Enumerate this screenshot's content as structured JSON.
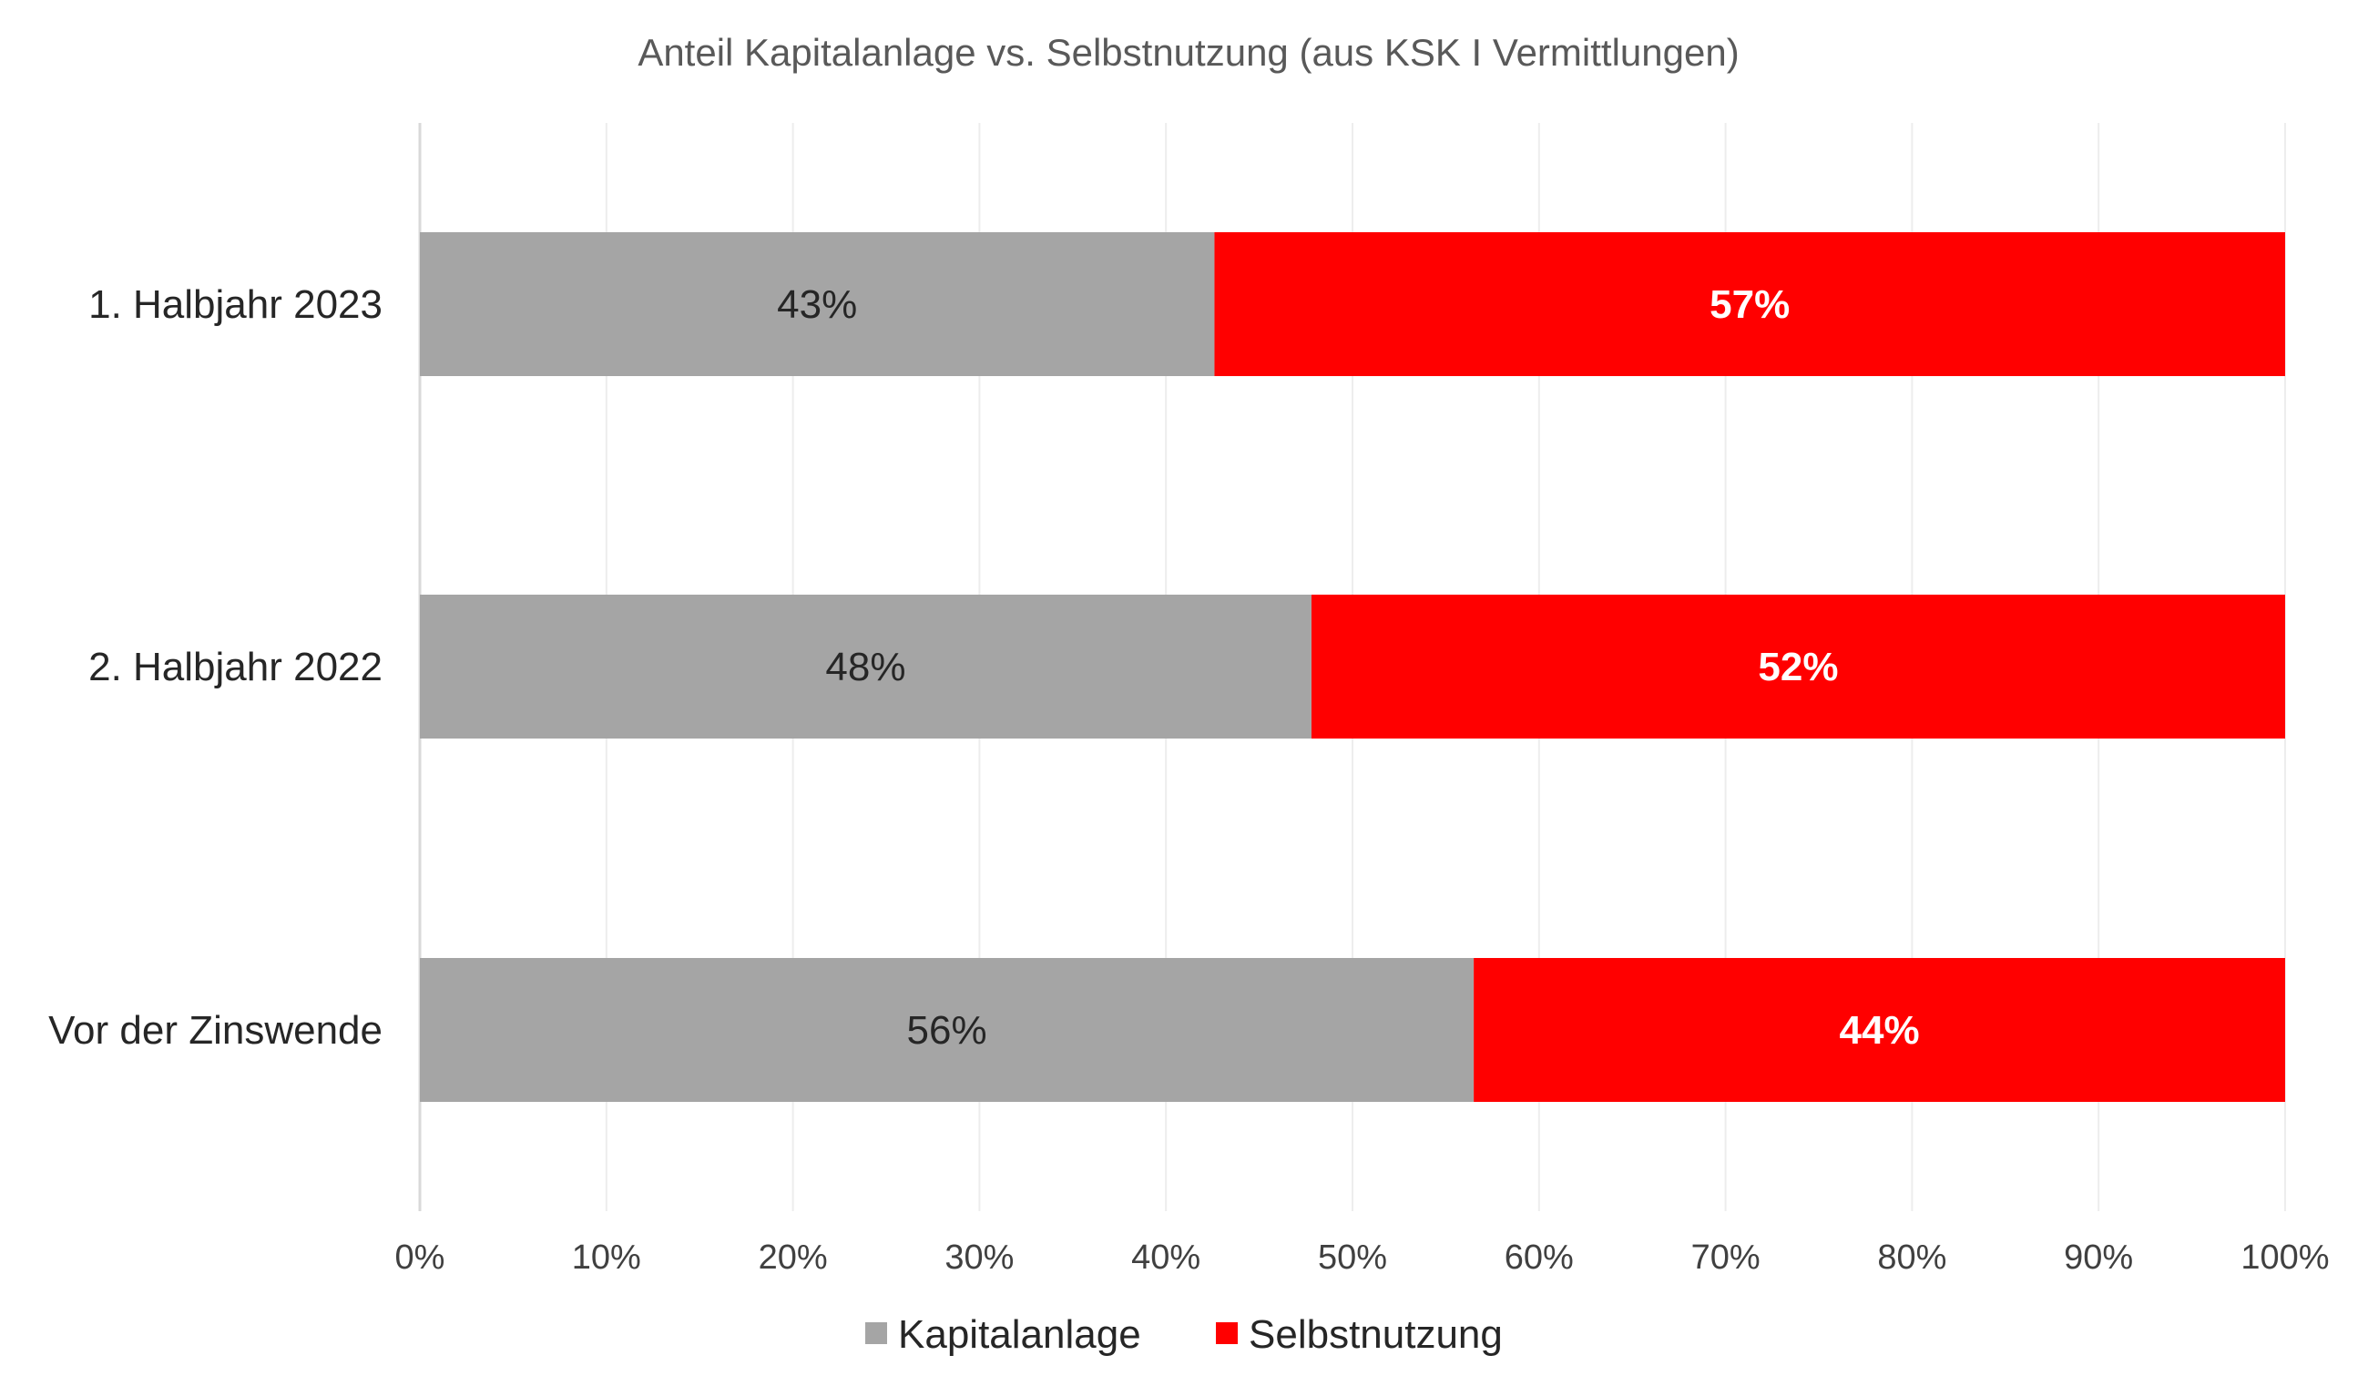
{
  "chart_data": {
    "type": "bar",
    "orientation": "horizontal",
    "stacked": "100%",
    "title": "Anteil Kapitalanlage vs. Selbstnutzung (aus KSK I Vermittlungen)",
    "categories": [
      "1. Halbjahr 2023",
      "2. Halbjahr 2022",
      "Vor der Zinswende"
    ],
    "series": [
      {
        "name": "Kapitalanlage",
        "color": "#A5A5A5",
        "label_color": "#262626",
        "values": [
          42.6,
          47.8,
          56.5
        ],
        "labels": [
          "43%",
          "48%",
          "56%"
        ]
      },
      {
        "name": "Selbstnutzung",
        "color": "#FF0000",
        "label_color": "#FFFFFF",
        "values": [
          57.4,
          52.2,
          43.5
        ],
        "labels": [
          "57%",
          "52%",
          "44%"
        ]
      }
    ],
    "xlim": [
      0,
      100
    ],
    "xticks": [
      "0%",
      "10%",
      "20%",
      "30%",
      "40%",
      "50%",
      "60%",
      "70%",
      "80%",
      "90%",
      "100%"
    ],
    "grid": true,
    "legend_position": "bottom"
  }
}
